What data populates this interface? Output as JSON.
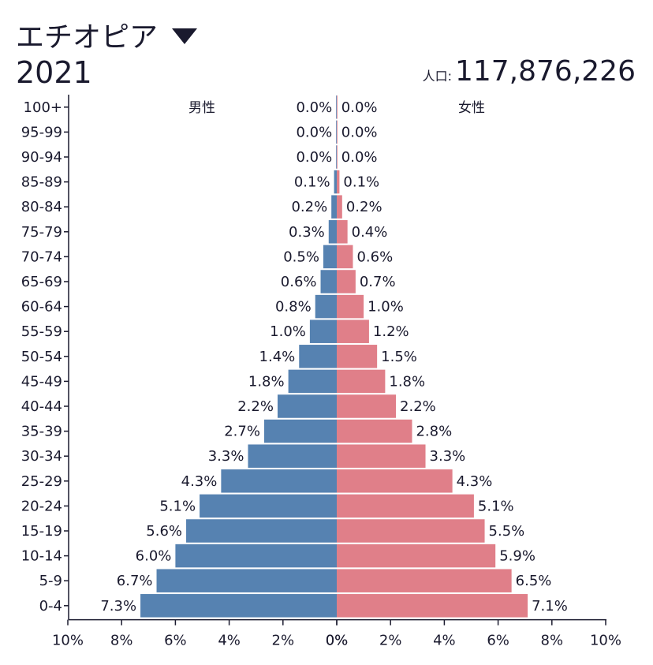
{
  "header": {
    "country": "エチオピア",
    "year": "2021",
    "population_label": "人口:",
    "population_value": "117,876,226"
  },
  "colors": {
    "male": "#5682b1",
    "female": "#e07f89",
    "axis": "#1a1a2e"
  },
  "chart_data": {
    "type": "bar",
    "subtype": "population-pyramid",
    "title": "エチオピア 2021",
    "categories": [
      "100+",
      "95-99",
      "90-94",
      "85-89",
      "80-84",
      "75-79",
      "70-74",
      "65-69",
      "60-64",
      "55-59",
      "50-54",
      "45-49",
      "40-44",
      "35-39",
      "30-34",
      "25-29",
      "20-24",
      "15-19",
      "10-14",
      "5-9",
      "0-4"
    ],
    "series": [
      {
        "name": "男性",
        "values": [
          0.0,
          0.0,
          0.0,
          0.1,
          0.2,
          0.3,
          0.5,
          0.6,
          0.8,
          1.0,
          1.4,
          1.8,
          2.2,
          2.7,
          3.3,
          4.3,
          5.1,
          5.6,
          6.0,
          6.7,
          7.3
        ],
        "labels": [
          "0.0%",
          "0.0%",
          "0.0%",
          "0.1%",
          "0.2%",
          "0.3%",
          "0.5%",
          "0.6%",
          "0.8%",
          "1.0%",
          "1.4%",
          "1.8%",
          "2.2%",
          "2.7%",
          "3.3%",
          "4.3%",
          "5.1%",
          "5.6%",
          "6.0%",
          "6.7%",
          "7.3%"
        ]
      },
      {
        "name": "女性",
        "values": [
          0.0,
          0.0,
          0.0,
          0.1,
          0.2,
          0.4,
          0.6,
          0.7,
          1.0,
          1.2,
          1.5,
          1.8,
          2.2,
          2.8,
          3.3,
          4.3,
          5.1,
          5.5,
          5.9,
          6.5,
          7.1
        ],
        "labels": [
          "0.0%",
          "0.0%",
          "0.0%",
          "0.1%",
          "0.2%",
          "0.4%",
          "0.6%",
          "0.7%",
          "1.0%",
          "1.2%",
          "1.5%",
          "1.8%",
          "2.2%",
          "2.8%",
          "3.3%",
          "4.3%",
          "5.1%",
          "5.5%",
          "5.9%",
          "6.5%",
          "7.1%"
        ]
      }
    ],
    "xlim": [
      -10,
      10
    ],
    "x_ticks": [
      "10%",
      "8%",
      "6%",
      "4%",
      "2%",
      "0%",
      "0%",
      "2%",
      "4%",
      "6%",
      "8%",
      "10%"
    ],
    "x_tick_values": [
      -10,
      -8,
      -6,
      -4,
      -2,
      0,
      0,
      2,
      4,
      6,
      8,
      10
    ],
    "xlabel": "",
    "ylabel": ""
  }
}
